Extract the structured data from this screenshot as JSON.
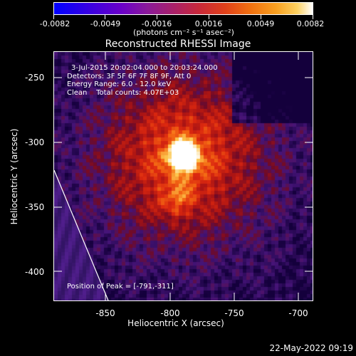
{
  "colorbar": {
    "tick_labels": [
      "-0.0082",
      "-0.0049",
      "-0.0016",
      "0.0016",
      "0.0049",
      "0.0082"
    ],
    "units": "(photons cm⁻² s⁻¹ asec⁻²)",
    "colors": [
      "#0000ff",
      "#6a00c8",
      "#c8283a",
      "#f07010",
      "#fcd060",
      "#ffffff"
    ]
  },
  "title": "Reconstructed RHESSI Image",
  "annotation": {
    "line1": "3-Jul-2015 20:02:04.000 to 20:03:24.000",
    "line2": "Detectors: 3F 5F 6F 7F 8F 9F, Att 0",
    "line3": "Energy Range: 6.0 - 12.0 keV",
    "line4": "Clean    Total counts: 4.07E+03"
  },
  "peak_text": "Position of Peak = [-791,-311]",
  "axes": {
    "xlabel": "Heliocentric X (arcsec)",
    "ylabel": "Heliocentric Y (arcsec)",
    "xticks": [
      "-850",
      "-800",
      "-750",
      "-700"
    ],
    "yticks": [
      "-250",
      "-300",
      "-350",
      "-400"
    ],
    "xlim": [
      -890,
      -690
    ],
    "ylim": [
      -424,
      -231
    ]
  },
  "map": {
    "peak": [
      -791,
      -311
    ],
    "secondary_source": [
      -797,
      -345
    ],
    "limb_color": "#ffffff",
    "background_color": "#3a1060"
  },
  "date_stamp": "22-May-2022 09:19"
}
